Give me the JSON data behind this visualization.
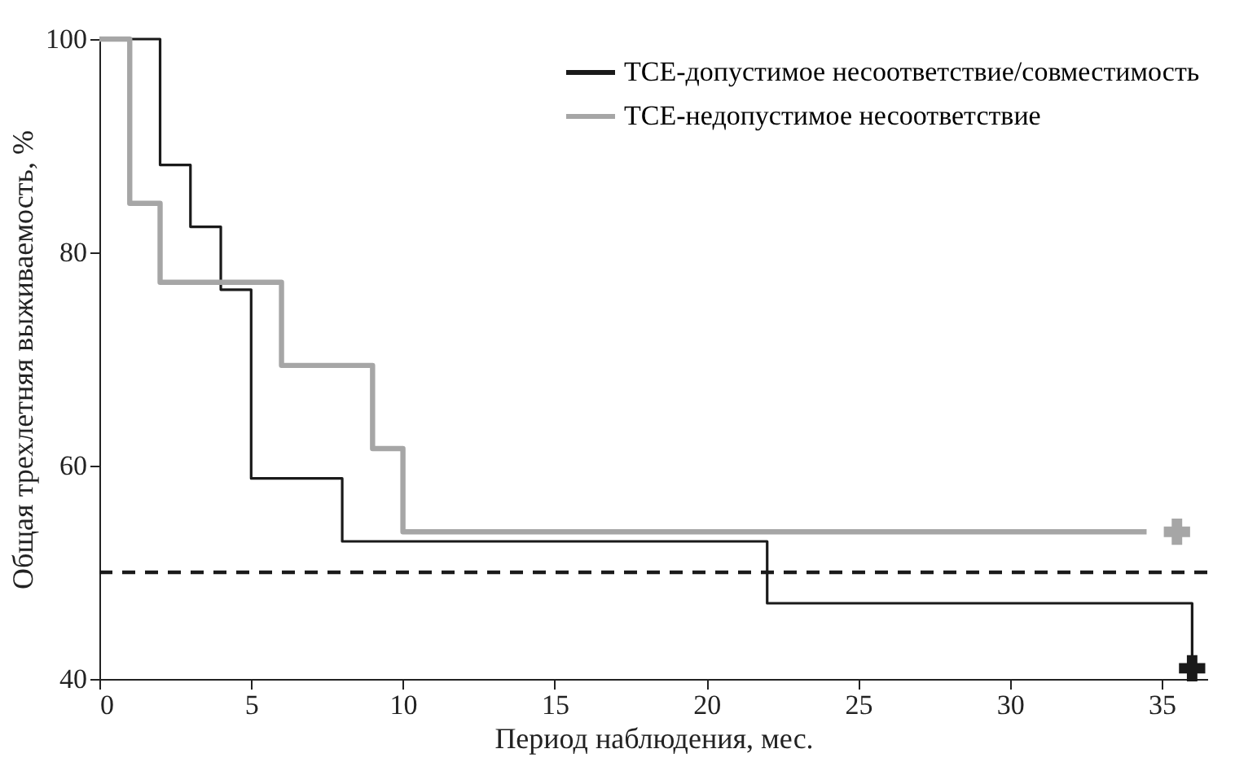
{
  "chart_data": {
    "type": "step",
    "xlabel": "Период наблюдения, мес.",
    "ylabel": "Общая трехлетняя выживаемость, %",
    "xlim": [
      0,
      36.5
    ],
    "ylim": [
      40,
      100
    ],
    "xticks": [
      0,
      5,
      10,
      15,
      20,
      25,
      30,
      35
    ],
    "yticks": [
      40,
      60,
      80,
      100
    ],
    "grid": false,
    "legend": "top right",
    "line_style": "solid",
    "series": [
      {
        "name": "ТСЕ-допустимое несоответствие/совместимость",
        "color": "#1a1a1a",
        "x": [
          0,
          2,
          3,
          4,
          5,
          8,
          22,
          36,
          36
        ],
        "values": [
          100,
          88.2,
          82.4,
          76.5,
          58.8,
          52.9,
          47.1,
          47.1,
          41
        ]
      },
      {
        "name": "ТСЕ-недопустимое несоответствие",
        "color": "#a6a6a6",
        "x": [
          0,
          1,
          2,
          6,
          9,
          10,
          34.5
        ],
        "values": [
          100,
          84.6,
          77.2,
          69.4,
          61.6,
          53.8,
          53.8
        ]
      },
      {
        "type": "scatter",
        "marker": "cross",
        "color": "#1a1a1a",
        "x": [
          36
        ],
        "values": [
          41
        ]
      },
      {
        "type": "scatter",
        "marker": "cross",
        "color": "#a6a6a6",
        "x": [
          35.5
        ],
        "values": [
          53.8
        ]
      }
    ],
    "ref_lines": [
      {
        "axis": "y",
        "value": 50,
        "color": "#1a1a1a",
        "line_style": "dashed"
      }
    ]
  }
}
